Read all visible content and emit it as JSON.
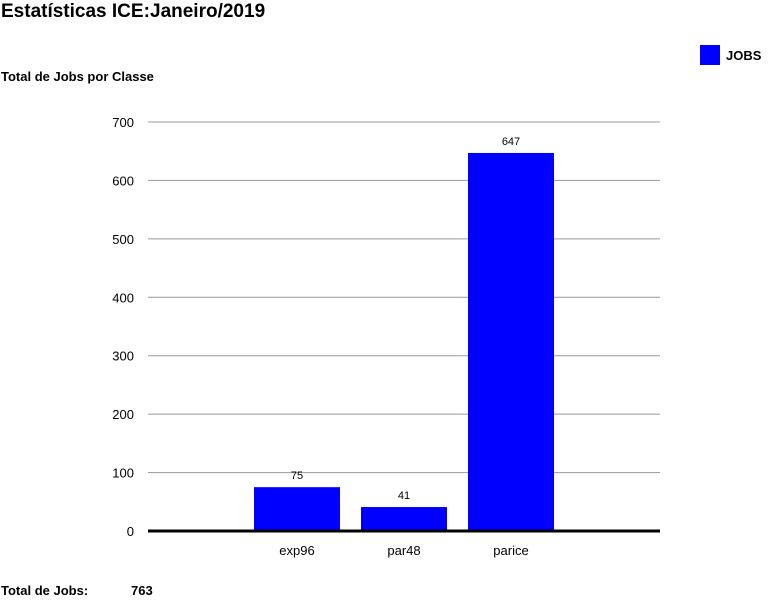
{
  "header": {
    "title": "Estatísticas ICE:",
    "period": "Janeiro/2019"
  },
  "chart_title": "Total de Jobs por Classe",
  "legend": {
    "label": "JOBS"
  },
  "footer": {
    "label": "Total de Jobs:",
    "value": "763"
  },
  "colors": {
    "bar": "#0000ff",
    "grid": "#999999",
    "axis": "#000000"
  },
  "chart_data": {
    "type": "bar",
    "title": "Total de Jobs por Classe",
    "categories": [
      "exp96",
      "par48",
      "parice"
    ],
    "series": [
      {
        "name": "JOBS",
        "values": [
          75,
          41,
          647
        ]
      }
    ],
    "ylim": [
      0,
      700
    ],
    "yticks": [
      0,
      100,
      200,
      300,
      400,
      500,
      600,
      700
    ],
    "grid": true,
    "legend_position": "top-right",
    "data_labels": true
  }
}
